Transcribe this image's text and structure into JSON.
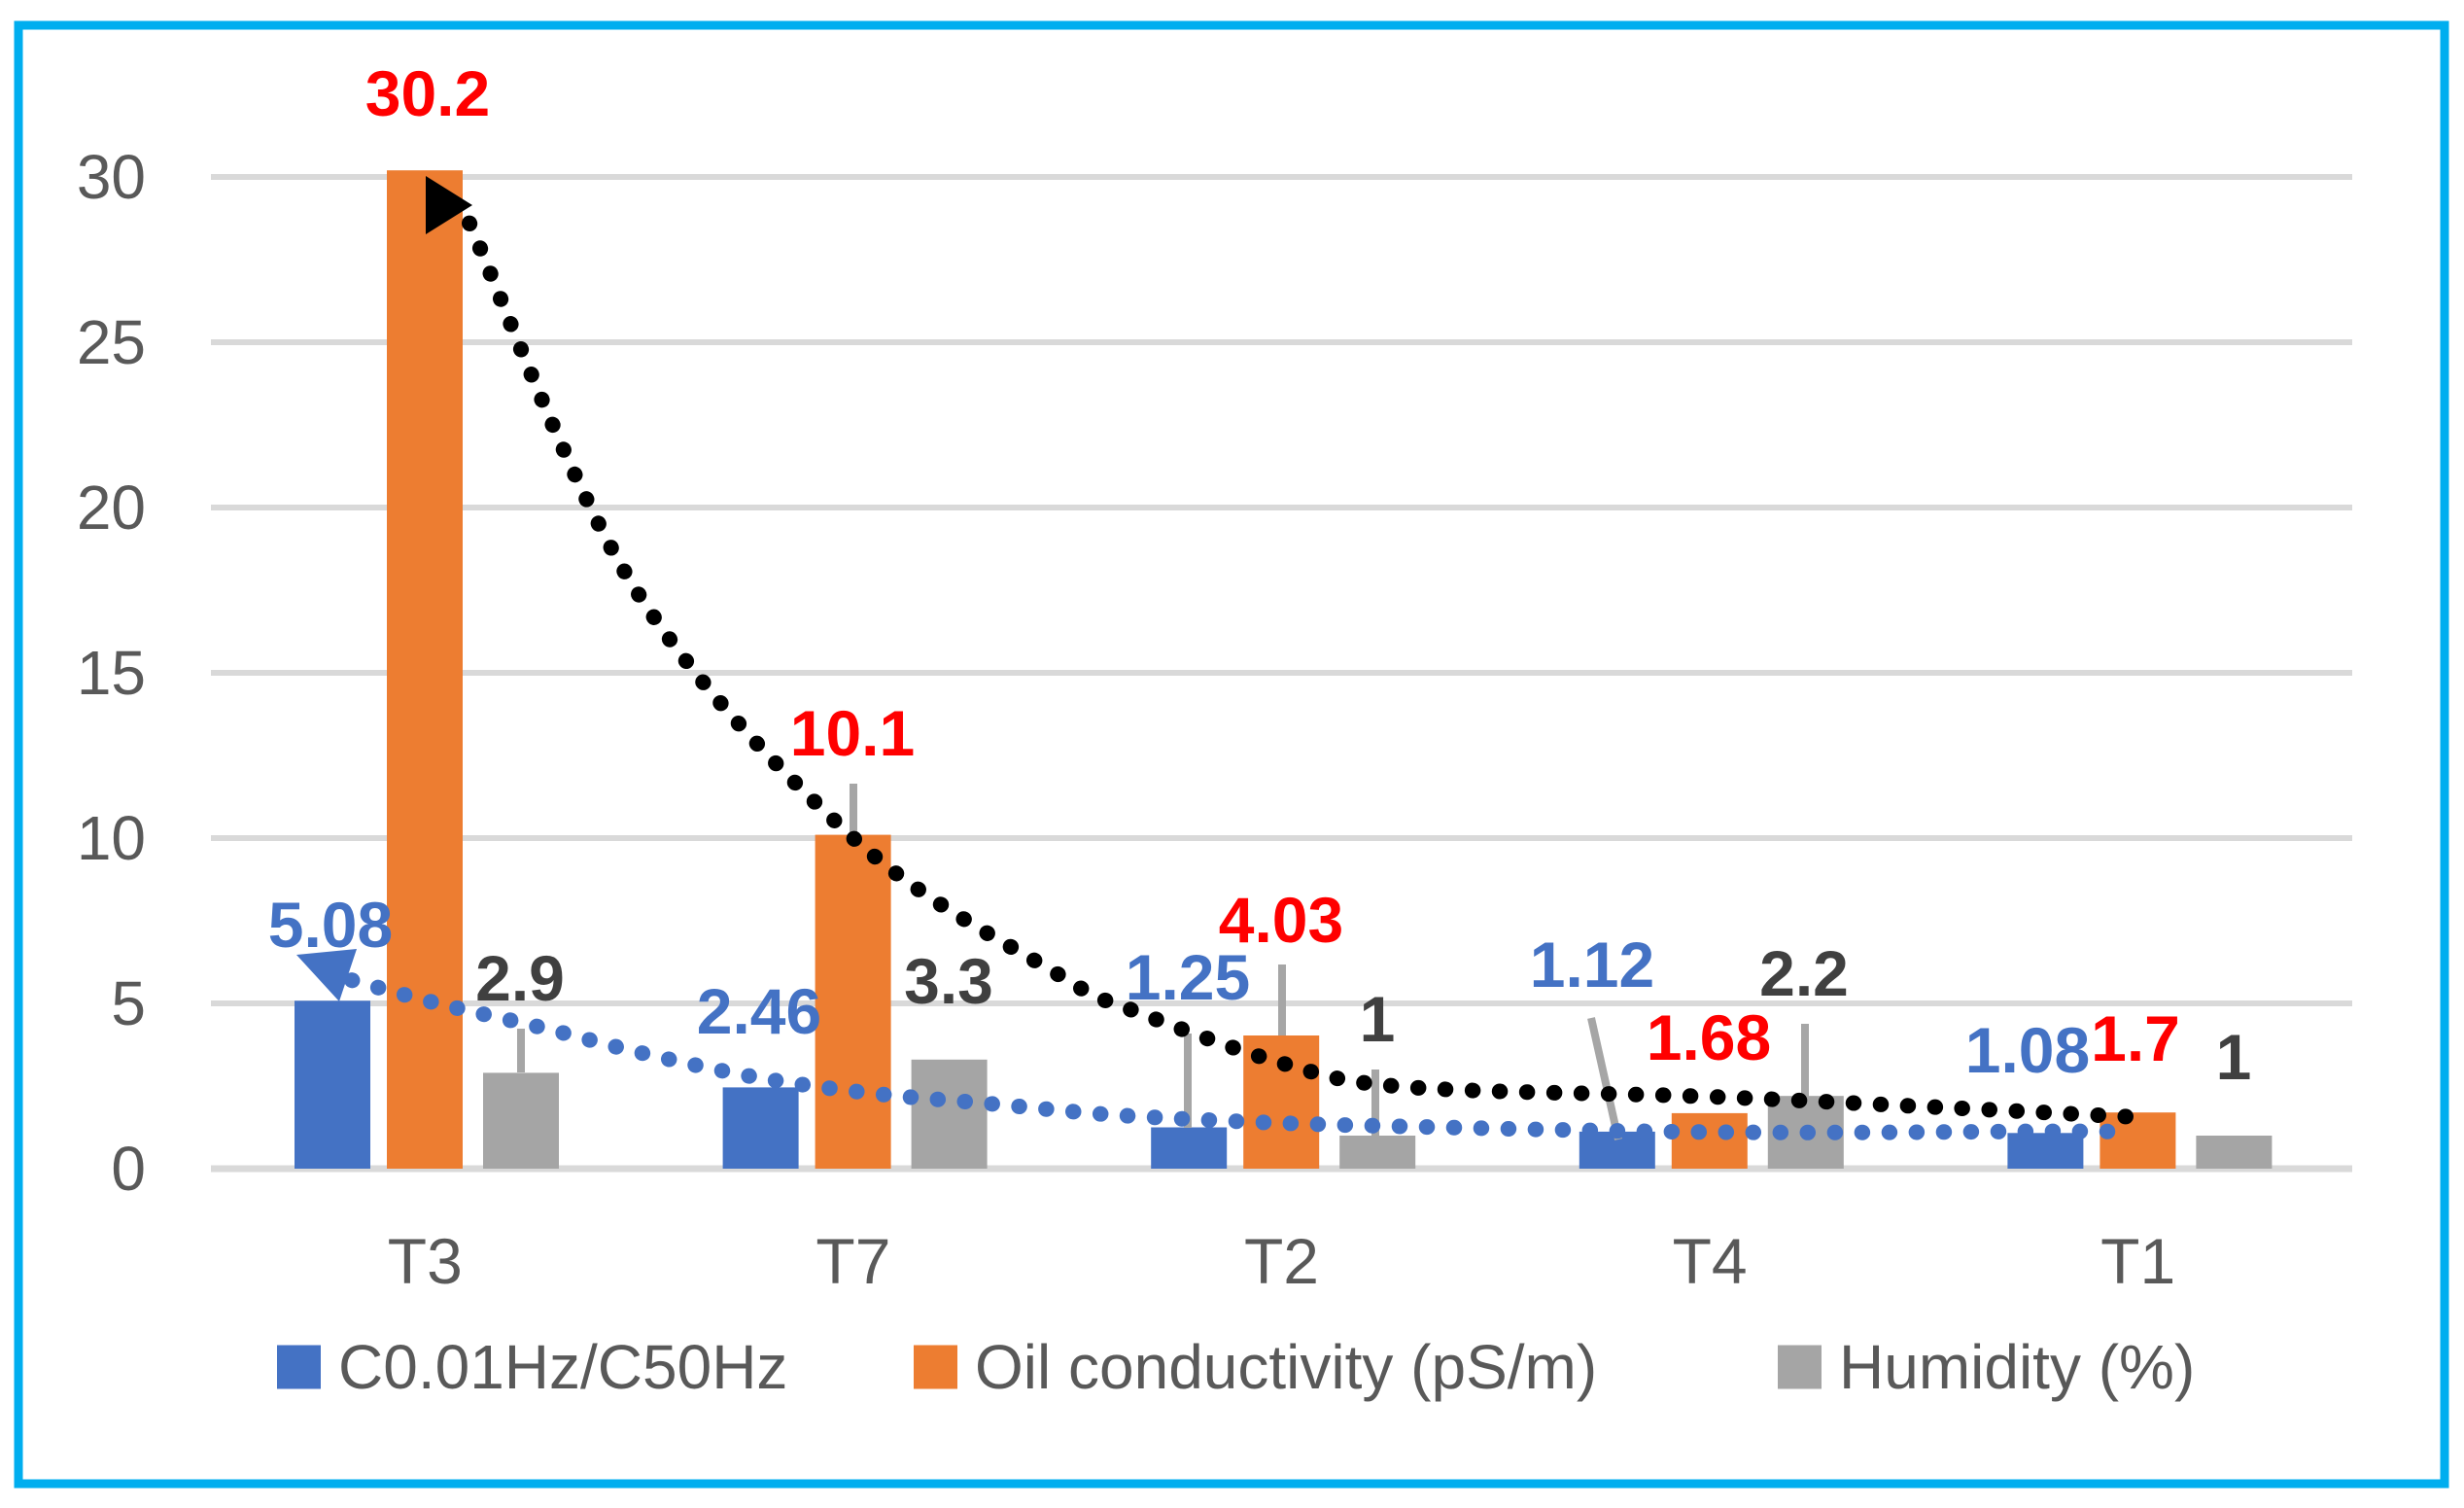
{
  "chart_data": {
    "type": "bar",
    "title": "",
    "categories": [
      "T3",
      "T7",
      "T2",
      "T4",
      "T1"
    ],
    "series": [
      {
        "name": "C0.01Hz/C50Hz",
        "color": "#4472C4",
        "label_color": "#4472C4",
        "values": [
          5.08,
          2.46,
          1.25,
          1.12,
          1.08
        ],
        "labels": [
          "5.08",
          "2.46",
          "1.25",
          "1.12",
          "1.08"
        ]
      },
      {
        "name": "Oil conductivity (pS/m)",
        "color": "#ED7D31",
        "label_color": "#FF0000",
        "values": [
          30.2,
          10.1,
          4.03,
          1.68,
          1.7
        ],
        "labels": [
          "30.2",
          "10.1",
          "4.03",
          "1.68",
          "1.7"
        ]
      },
      {
        "name": "Humidity (%)",
        "color": "#A5A5A5",
        "label_color": "#404040",
        "values": [
          2.9,
          3.3,
          1,
          2.2,
          1
        ],
        "labels": [
          "2.9",
          "3.3",
          "1",
          "2.2",
          "1"
        ]
      }
    ],
    "y_axis": {
      "min": 0,
      "max": 30,
      "step": 5,
      "tick_labels": [
        "0",
        "5",
        "10",
        "15",
        "20",
        "25",
        "30"
      ]
    },
    "x_axis": {
      "tick_labels": [
        "T3",
        "T7",
        "T2",
        "T4",
        "T1"
      ]
    },
    "grid": true,
    "legend_position": "bottom",
    "trendlines": [
      {
        "for_series": "Oil conductivity (pS/m)",
        "color": "#000000",
        "style": "dotted",
        "arrow_start": true,
        "samples": [
          {
            "x": 483,
            "v": 28.6
          },
          {
            "x": 650,
            "v": 17.7
          },
          {
            "x": 878,
            "v": 10.0
          },
          {
            "x": 1093,
            "v": 5.8
          },
          {
            "x": 1160,
            "v": 4.85
          },
          {
            "x": 1318,
            "v": 3.2
          },
          {
            "x": 1447,
            "v": 2.47
          },
          {
            "x": 1758,
            "v": 2.18
          },
          {
            "x": 2000,
            "v": 1.85
          },
          {
            "x": 2198,
            "v": 1.56
          }
        ]
      },
      {
        "for_series": "C0.01Hz/C50Hz",
        "color": "#4472C4",
        "style": "dotted",
        "arrow_start": true,
        "samples": [
          {
            "x": 362,
            "v": 5.7
          },
          {
            "x": 450,
            "v": 5.0
          },
          {
            "x": 560,
            "v": 4.25
          },
          {
            "x": 660,
            "v": 3.5
          },
          {
            "x": 781,
            "v": 2.75
          },
          {
            "x": 900,
            "v": 2.27
          },
          {
            "x": 1017,
            "v": 1.97
          },
          {
            "x": 1150,
            "v": 1.62
          },
          {
            "x": 1318,
            "v": 1.38
          },
          {
            "x": 1500,
            "v": 1.24
          },
          {
            "x": 1650,
            "v": 1.15
          },
          {
            "x": 1790,
            "v": 1.1
          },
          {
            "x": 1950,
            "v": 1.1
          },
          {
            "x": 2100,
            "v": 1.13
          },
          {
            "x": 2190,
            "v": 1.12
          }
        ]
      }
    ],
    "colors": {
      "border": "#00AEEF",
      "gridline": "#D9D9D9",
      "axis_text": "#595959",
      "leader": "#A6A6A6"
    }
  },
  "legend": {
    "items": [
      {
        "label": "C0.01Hz/C50Hz",
        "color": "#4472C4"
      },
      {
        "label": "Oil conductivity (pS/m)",
        "color": "#ED7D31"
      },
      {
        "label": "Humidity (%)",
        "color": "#A5A5A5"
      }
    ]
  }
}
